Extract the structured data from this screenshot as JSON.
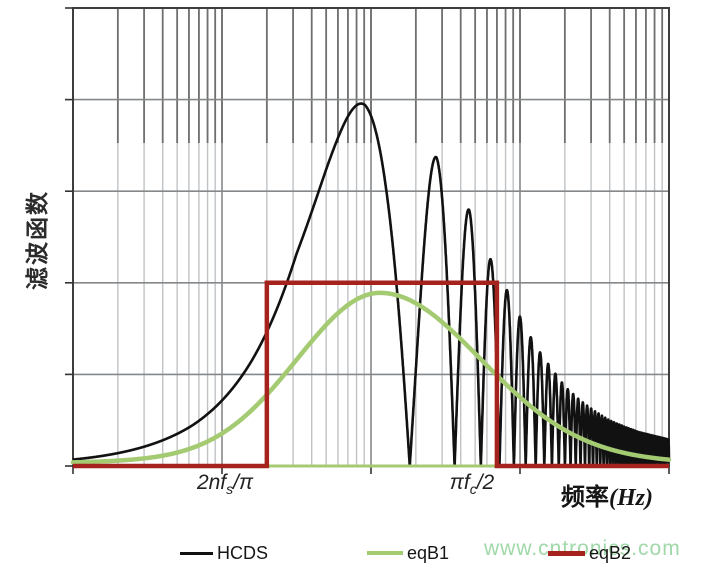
{
  "figure": {
    "background": "#ffffff"
  },
  "y_axis_label": "滤波函数",
  "x_axis_label": {
    "main": "频率",
    "unit": "(Hz)"
  },
  "x_tick_labels": [
    {
      "prefix": "2nf",
      "sub": "s",
      "suffix": "/π"
    },
    {
      "prefix": "πf",
      "sub": "c",
      "suffix": "/2"
    }
  ],
  "watermark": "www.cntronics.com",
  "colors": {
    "frame": "#3d3d3d",
    "grid_light": "#bfc3c5",
    "grid_dark_top": "#6f6f6f",
    "grid_major": "#85888a",
    "hcds": "#111111",
    "eqB1": "#a4ca72",
    "eqB2": "#a6231d",
    "watermark": "#a0d8a8",
    "text": "#1f1f1f"
  },
  "legend": {
    "position": "bottom",
    "items": [
      {
        "label": "HCDS",
        "color": "#111111"
      },
      {
        "label": "eqB1",
        "color": "#a4ca72"
      },
      {
        "label": "eqB2",
        "color": "#a6231d"
      }
    ]
  },
  "chart_data": {
    "type": "line",
    "title": "",
    "xlabel": "频率(Hz)",
    "ylabel": "滤波函数",
    "x_scale": "log",
    "x_range_decades": [
      0,
      4
    ],
    "y_range_units": [
      0,
      5
    ],
    "grid": true,
    "y_gridlines_units": [
      1,
      2,
      3,
      4
    ],
    "x_decade_ticks": [
      0,
      1,
      2,
      3,
      4
    ],
    "x_named_ticks": [
      {
        "label": "2nfs/π",
        "decade": 1.0
      },
      {
        "label": "πfc/2",
        "decade": 2.67
      }
    ],
    "series": [
      {
        "name": "HCDS",
        "color": "#111111",
        "shape": "oscillatory",
        "model": "value(u) = envelope(u) * |sin(pi * 10^u / null_spacing)|",
        "null_spacing": 182,
        "main_peak": {
          "decade": 1.96,
          "value": 3.93
        },
        "secondary_peaks": [
          {
            "decade": 2.44,
            "value": 3.37
          },
          {
            "decade": 2.66,
            "value": 2.79
          },
          {
            "decade": 2.8,
            "value": 2.25
          },
          {
            "decade": 2.92,
            "value": 1.9
          }
        ],
        "envelope_points": [
          [
            0,
            4.07
          ],
          [
            0.8,
            4.07
          ],
          [
            1.2,
            4.26
          ],
          [
            1.5,
            4.46
          ],
          [
            1.7,
            4.26
          ],
          [
            1.96,
            3.94
          ],
          [
            2.1,
            3.69
          ],
          [
            2.2,
            3.57
          ],
          [
            2.3,
            3.45
          ],
          [
            2.44,
            3.37
          ],
          [
            2.55,
            3.1
          ],
          [
            2.66,
            2.79
          ],
          [
            2.73,
            2.52
          ],
          [
            2.805,
            2.25
          ],
          [
            2.86,
            2.06
          ],
          [
            2.92,
            1.9
          ],
          [
            3.0,
            1.63
          ],
          [
            3.1,
            1.32
          ],
          [
            3.2,
            1.09
          ],
          [
            3.3,
            0.87
          ],
          [
            3.4,
            0.72
          ],
          [
            3.5,
            0.6
          ],
          [
            3.6,
            0.5
          ],
          [
            3.7,
            0.43
          ],
          [
            3.8,
            0.37
          ],
          [
            3.9,
            0.33
          ],
          [
            4.0,
            0.29
          ]
        ]
      },
      {
        "name": "eqB1",
        "color": "#a4ca72",
        "shape": "bell",
        "peak": {
          "decade": 2.06,
          "value": 1.89
        },
        "gauss_main_value": 1.8,
        "width_decades_left": 0.78,
        "width_decades_right": 0.95,
        "pedestal": {
          "value": 0.09,
          "width_decades": 2.2
        },
        "baseline_segment_decades": [
          1.29,
          2.85
        ]
      },
      {
        "name": "eqB2",
        "color": "#a6231d",
        "shape": "rect",
        "edges_decades": [
          1.301,
          2.845
        ],
        "height_units": 2.0,
        "zero_outside": true
      }
    ],
    "legend_position": "bottom"
  }
}
